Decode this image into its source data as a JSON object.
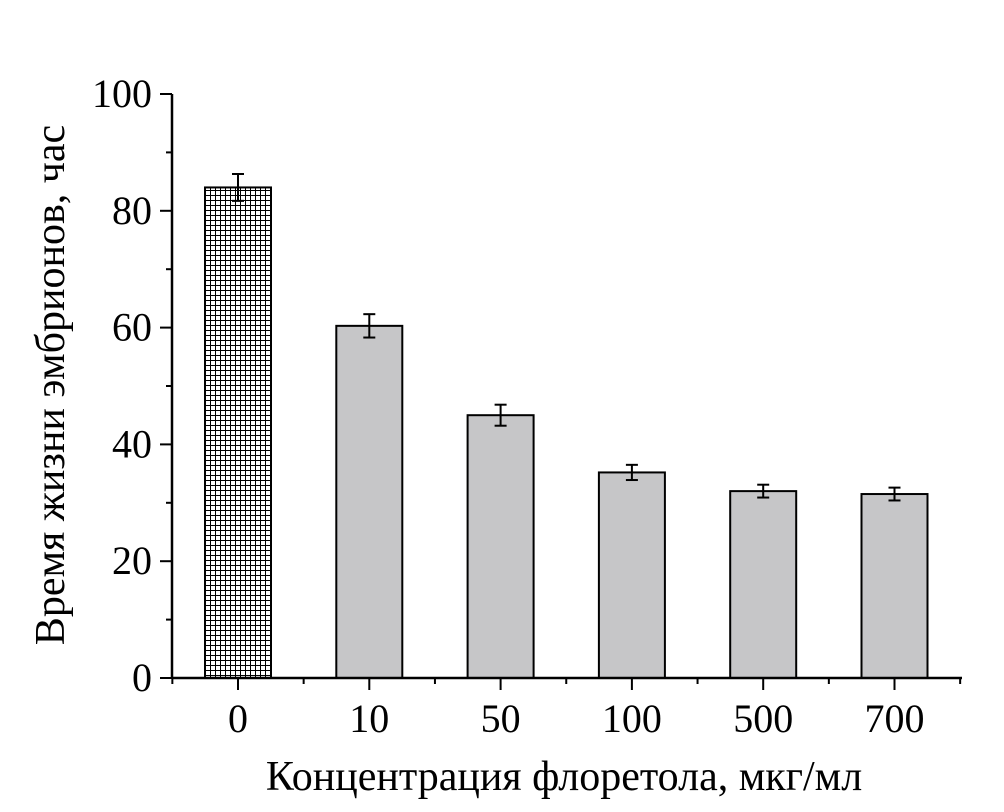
{
  "chart_data": {
    "type": "bar",
    "title": "",
    "xlabel": "Концентрация флоретола, мкг/мл",
    "ylabel": "Время жизни эмбрионов, час",
    "categories": [
      "0",
      "10",
      "50",
      "100",
      "500",
      "700"
    ],
    "values": [
      84,
      60.3,
      45,
      35.2,
      32,
      31.5
    ],
    "errors": [
      2.3,
      2.0,
      1.8,
      1.3,
      1.1,
      1.1
    ],
    "ylim": [
      0,
      100
    ],
    "yticks": [
      0,
      20,
      40,
      60,
      80,
      100
    ],
    "grid": false,
    "legend": "none",
    "colors": {
      "control_fill": "#ffffff",
      "control_pattern": "grid-hatch",
      "bar_fill": "#c6c6c8",
      "stroke": "#000000"
    }
  }
}
